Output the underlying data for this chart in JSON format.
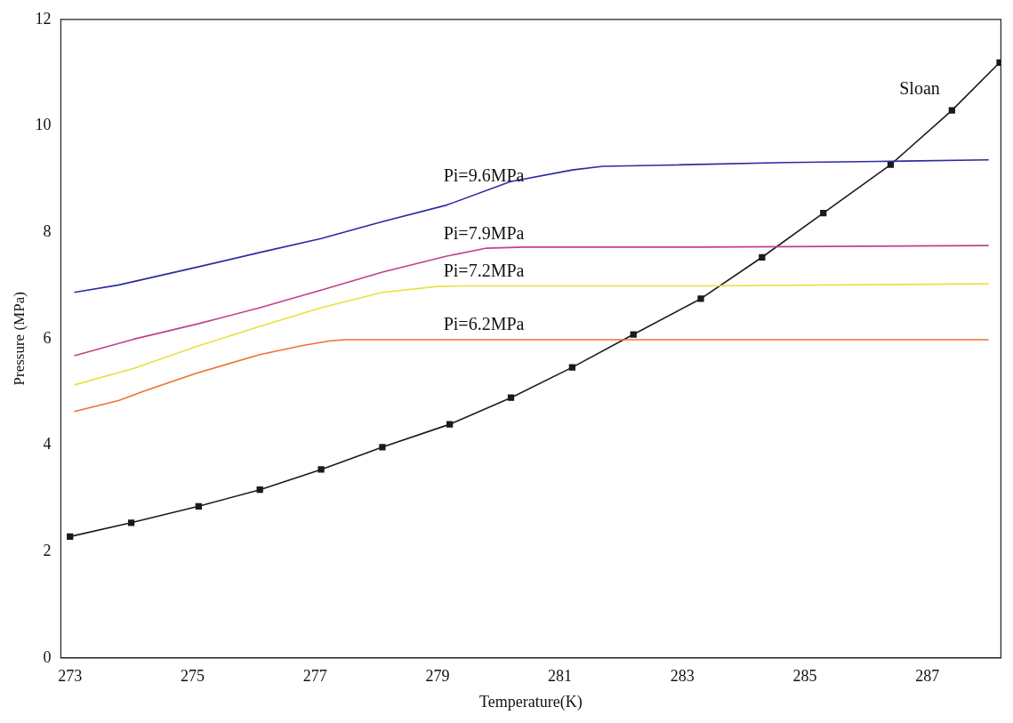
{
  "chart_data": {
    "type": "line",
    "xlabel": "Temperature(K)",
    "ylabel": "Pressure (MPa)",
    "xlim": [
      272.85,
      288.2
    ],
    "ylim": [
      0,
      12
    ],
    "xticks": [
      273,
      275,
      277,
      279,
      281,
      283,
      285,
      287
    ],
    "yticks": [
      0,
      2,
      4,
      6,
      8,
      10,
      12
    ],
    "grid": false,
    "legend": false,
    "series": [
      {
        "name": "Pi=9.6MPa",
        "color": "#2b2ba0",
        "marker": "none",
        "x": [
          273.07,
          273.8,
          275.06,
          276.1,
          277.1,
          278.1,
          279.15,
          280.19,
          281.2,
          281.7,
          282.7,
          284.7,
          286.2,
          288.0
        ],
        "values": [
          6.87,
          7.01,
          7.34,
          7.62,
          7.88,
          8.2,
          8.51,
          8.95,
          9.17,
          9.24,
          9.26,
          9.31,
          9.33,
          9.36
        ]
      },
      {
        "name": "Pi=7.9MPa",
        "color": "#c0408a",
        "marker": "none",
        "x": [
          273.07,
          274.04,
          275.06,
          276.1,
          277.1,
          278.1,
          279.15,
          279.8,
          280.4,
          283.3,
          288.0
        ],
        "values": [
          5.68,
          5.99,
          6.27,
          6.58,
          6.91,
          7.25,
          7.55,
          7.7,
          7.72,
          7.72,
          7.75
        ]
      },
      {
        "name": "Pi=7.2MPa",
        "color": "#e8e040",
        "marker": "none",
        "x": [
          273.07,
          274.04,
          275.06,
          276.1,
          277.1,
          278.1,
          279.0,
          279.4,
          283.3,
          288.0
        ],
        "values": [
          5.13,
          5.44,
          5.85,
          6.23,
          6.58,
          6.87,
          6.98,
          6.99,
          6.99,
          7.03
        ]
      },
      {
        "name": "Pi=6.2MPa",
        "color": "#f07030",
        "marker": "none",
        "x": [
          273.07,
          273.8,
          274.2,
          275.06,
          276.1,
          276.8,
          277.25,
          277.5,
          281.9,
          288.0
        ],
        "values": [
          4.63,
          4.84,
          5.01,
          5.35,
          5.7,
          5.87,
          5.96,
          5.98,
          5.98,
          5.98
        ]
      },
      {
        "name": "Sloan",
        "color": "#1a1a1a",
        "marker": "square",
        "x": [
          273.0,
          274.0,
          275.1,
          276.1,
          277.1,
          278.1,
          279.2,
          280.2,
          281.2,
          282.2,
          283.3,
          284.3,
          285.3,
          286.4,
          287.4,
          288.18
        ],
        "values": [
          2.28,
          2.54,
          2.85,
          3.16,
          3.54,
          3.96,
          4.39,
          4.89,
          5.46,
          6.08,
          6.75,
          7.53,
          8.36,
          9.27,
          10.29,
          11.19
        ]
      }
    ]
  }
}
